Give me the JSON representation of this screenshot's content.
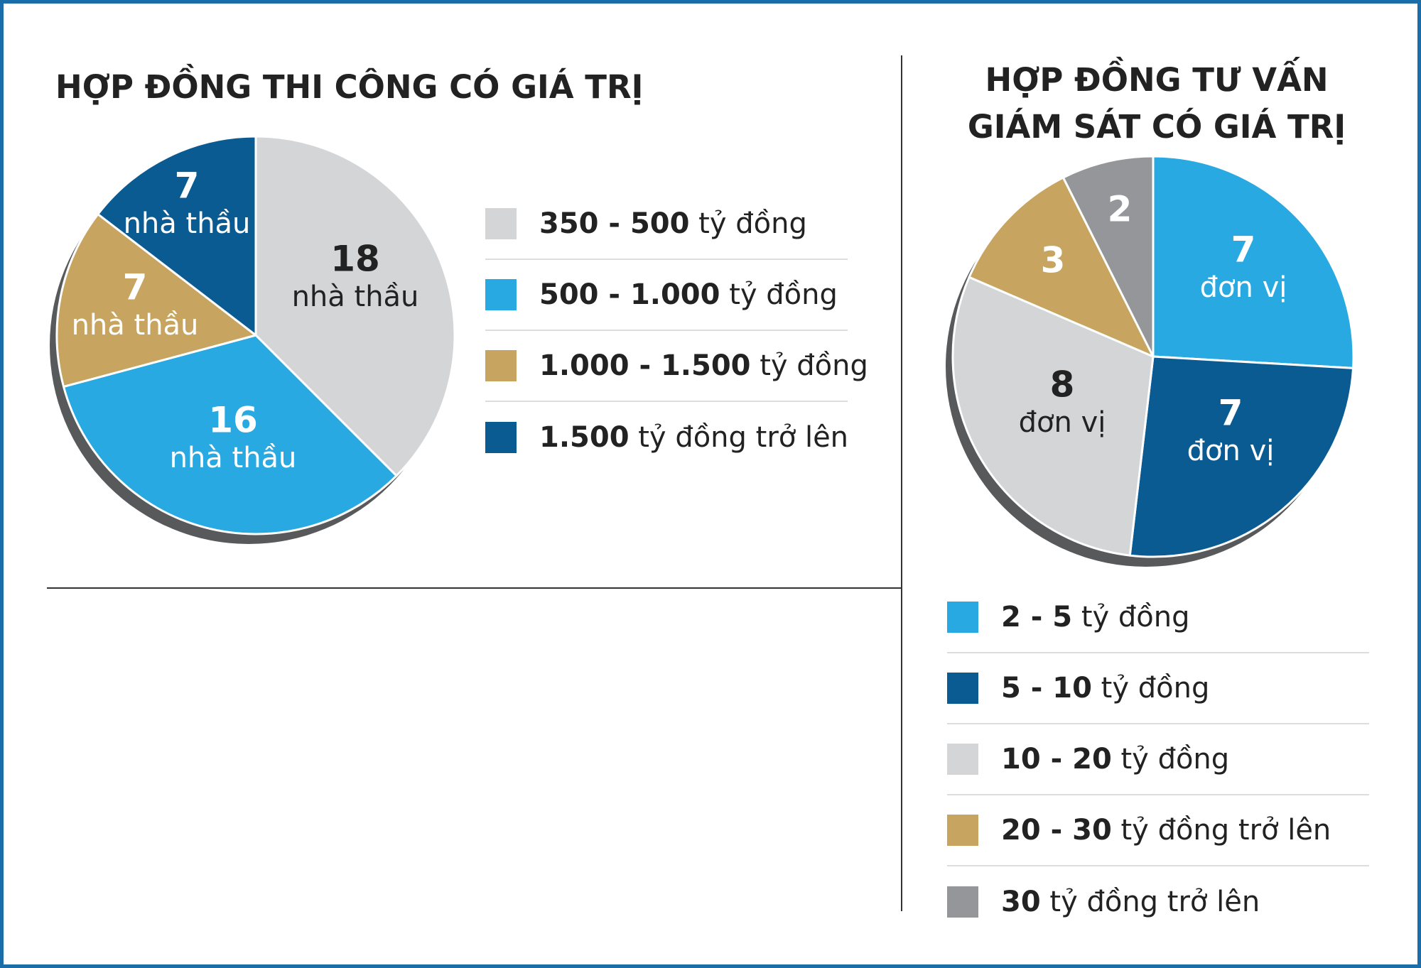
{
  "colors": {
    "light_gray": "#d4d5d7",
    "light_blue": "#29a9e1",
    "gold": "#c7a560",
    "dark_blue": "#0b5b93",
    "mid_gray": "#949699",
    "frame_border": "#1a6da8",
    "shadow": "#58595b"
  },
  "chart_data": [
    {
      "type": "pie",
      "title": "HỢP ĐỒNG THI CÔNG CÓ GIÁ TRỊ",
      "slice_unit": "nhà thầu",
      "legend_placement": "right",
      "slices": [
        {
          "label_bold": "350 - 500",
          "label_rest": " tỷ đồng",
          "value": 18,
          "color": "#d4d5d7",
          "text_color": "#222222"
        },
        {
          "label_bold": "500 - 1.000",
          "label_rest": " tỷ đồng",
          "value": 16,
          "color": "#29a9e1",
          "text_color": "#ffffff"
        },
        {
          "label_bold": "1.000 - 1.500",
          "label_rest": " tỷ đồng",
          "value": 7,
          "color": "#c7a560",
          "text_color": "#ffffff"
        },
        {
          "label_bold": "1.500",
          "label_rest": " tỷ đồng trở lên",
          "value": 7,
          "color": "#0b5b93",
          "text_color": "#ffffff"
        }
      ]
    },
    {
      "type": "pie",
      "title_lines": [
        "HỢP ĐỒNG TƯ VẤN",
        "GIÁM SÁT CÓ GIÁ TRỊ"
      ],
      "slice_unit": "đơn vị",
      "legend_placement": "bottom",
      "slices": [
        {
          "label_bold": "2 - 5",
          "label_rest": " tỷ đồng",
          "value": 7,
          "color": "#29a9e1",
          "text_color": "#ffffff",
          "show_unit": true
        },
        {
          "label_bold": "5 - 10",
          "label_rest": " tỷ đồng",
          "value": 7,
          "color": "#0b5b93",
          "text_color": "#ffffff",
          "show_unit": true
        },
        {
          "label_bold": "10 - 20",
          "label_rest": " tỷ đồng",
          "value": 8,
          "color": "#d4d5d7",
          "text_color": "#222222",
          "show_unit": true
        },
        {
          "label_bold": "20 - 30",
          "label_rest": " tỷ đồng trở lên",
          "value": 3,
          "color": "#c7a560",
          "text_color": "#ffffff",
          "show_unit": false
        },
        {
          "label_bold": "30",
          "label_rest": " tỷ đồng trở lên",
          "value": 2,
          "color": "#949699",
          "text_color": "#ffffff",
          "show_unit": false
        }
      ]
    }
  ]
}
